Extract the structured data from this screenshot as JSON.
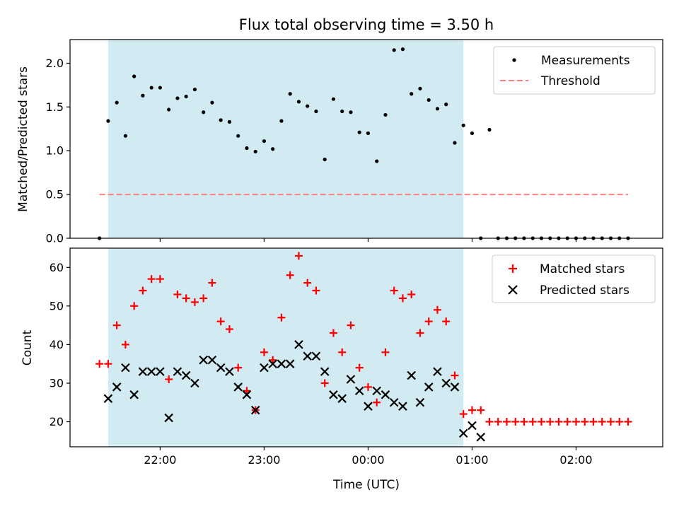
{
  "chart_data": [
    {
      "type": "scatter",
      "title": "Flux total observing time = 3.50 h",
      "ylabel": "Matched/Predicted stars",
      "xlabel": "",
      "ylim": [
        0,
        2.27
      ],
      "yticks": [
        "0.0",
        "0.5",
        "1.0",
        "1.5",
        "2.0"
      ],
      "shaded_region": {
        "start": "21:30",
        "end": "00:55",
        "color": "#add8e6"
      },
      "legend_position": "top-right",
      "series": [
        {
          "name": "Measurements",
          "marker": "dot",
          "color": "#000000",
          "x": [
            "21:25",
            "21:30",
            "21:35",
            "21:40",
            "21:45",
            "21:50",
            "21:55",
            "22:00",
            "22:05",
            "22:10",
            "22:15",
            "22:20",
            "22:25",
            "22:30",
            "22:35",
            "22:40",
            "22:45",
            "22:50",
            "22:55",
            "23:00",
            "23:05",
            "23:10",
            "23:15",
            "23:20",
            "23:25",
            "23:30",
            "23:35",
            "23:40",
            "23:45",
            "23:50",
            "23:55",
            "00:00",
            "00:05",
            "00:10",
            "00:15",
            "00:20",
            "00:25",
            "00:30",
            "00:35",
            "00:40",
            "00:45",
            "00:50",
            "00:55",
            "01:00",
            "01:05",
            "01:10",
            "01:15",
            "01:20",
            "01:25",
            "01:30",
            "01:35",
            "01:40",
            "01:45",
            "01:50",
            "01:55",
            "02:00",
            "02:05",
            "02:10",
            "02:15",
            "02:20",
            "02:25",
            "02:30"
          ],
          "y": [
            0.0,
            1.34,
            1.55,
            1.17,
            1.85,
            1.63,
            1.72,
            1.72,
            1.47,
            1.6,
            1.62,
            1.7,
            1.44,
            1.55,
            1.35,
            1.33,
            1.17,
            1.03,
            0.99,
            1.11,
            1.02,
            1.34,
            1.65,
            1.56,
            1.51,
            1.45,
            0.9,
            1.59,
            1.45,
            1.44,
            1.21,
            1.2,
            0.88,
            1.41,
            2.15,
            2.16,
            1.65,
            1.71,
            1.58,
            1.48,
            1.53,
            1.09,
            1.29,
            1.2,
            0.0,
            1.24,
            0.0,
            0.0,
            0.0,
            0.0,
            0.0,
            0.0,
            0.0,
            0.0,
            0.0,
            0.0,
            0.0,
            0.0,
            0.0,
            0.0,
            0.0,
            0.0
          ]
        },
        {
          "name": "Threshold",
          "style": "dashed",
          "color": "#ff7f7f",
          "x": [
            "21:25",
            "02:30"
          ],
          "y": [
            0.5,
            0.5
          ]
        }
      ]
    },
    {
      "type": "scatter",
      "title": "",
      "ylabel": "Count",
      "xlabel": "Time (UTC)",
      "ylim": [
        13.5,
        65
      ],
      "yticks": [
        "20",
        "30",
        "40",
        "50",
        "60"
      ],
      "xticks": [
        "22:00",
        "23:00",
        "00:00",
        "01:00",
        "02:00"
      ],
      "shaded_region": {
        "start": "21:30",
        "end": "00:55",
        "color": "#add8e6"
      },
      "legend_position": "top-right",
      "series": [
        {
          "name": "Matched stars",
          "marker": "plus",
          "color": "#ff0000",
          "x": [
            "21:25",
            "21:30",
            "21:35",
            "21:40",
            "21:45",
            "21:50",
            "21:55",
            "22:00",
            "22:05",
            "22:10",
            "22:15",
            "22:20",
            "22:25",
            "22:30",
            "22:35",
            "22:40",
            "22:45",
            "22:50",
            "22:55",
            "23:00",
            "23:05",
            "23:10",
            "23:15",
            "23:20",
            "23:25",
            "23:30",
            "23:35",
            "23:40",
            "23:45",
            "23:50",
            "23:55",
            "00:00",
            "00:05",
            "00:10",
            "00:15",
            "00:20",
            "00:25",
            "00:30",
            "00:35",
            "00:40",
            "00:45",
            "00:50",
            "00:55",
            "01:00",
            "01:05",
            "01:10",
            "01:15",
            "01:20",
            "01:25",
            "01:30",
            "01:35",
            "01:40",
            "01:45",
            "01:50",
            "01:55",
            "02:00",
            "02:05",
            "02:10",
            "02:15",
            "02:20",
            "02:25",
            "02:30"
          ],
          "y": [
            35,
            35,
            45,
            40,
            50,
            54,
            57,
            57,
            31,
            53,
            52,
            51,
            52,
            56,
            46,
            44,
            34,
            28,
            23,
            38,
            36,
            47,
            58,
            63,
            56,
            54,
            30,
            43,
            38,
            45,
            34,
            29,
            25,
            38,
            54,
            52,
            53,
            43,
            46,
            49,
            46,
            32,
            22,
            23,
            23,
            20,
            20,
            20,
            20,
            20,
            20,
            20,
            20,
            20,
            20,
            20,
            20,
            20,
            20,
            20,
            20,
            20
          ]
        },
        {
          "name": "Predicted stars",
          "marker": "x",
          "color": "#000000",
          "x": [
            "21:30",
            "21:35",
            "21:40",
            "21:45",
            "21:50",
            "21:55",
            "22:00",
            "22:05",
            "22:10",
            "22:15",
            "22:20",
            "22:25",
            "22:30",
            "22:35",
            "22:40",
            "22:45",
            "22:50",
            "22:55",
            "23:00",
            "23:05",
            "23:10",
            "23:15",
            "23:20",
            "23:25",
            "23:30",
            "23:35",
            "23:40",
            "23:45",
            "23:50",
            "23:55",
            "00:00",
            "00:05",
            "00:10",
            "00:15",
            "00:20",
            "00:25",
            "00:30",
            "00:35",
            "00:40",
            "00:45",
            "00:50",
            "00:55",
            "01:00",
            "01:05"
          ],
          "y": [
            26,
            29,
            34,
            27,
            33,
            33,
            33,
            21,
            33,
            32,
            30,
            36,
            36,
            34,
            33,
            29,
            27,
            23,
            34,
            35,
            35,
            35,
            40,
            37,
            37,
            33,
            27,
            26,
            31,
            28,
            24,
            28,
            27,
            25,
            24,
            32,
            25,
            29,
            33,
            30,
            29,
            17,
            19,
            16
          ]
        }
      ]
    }
  ]
}
